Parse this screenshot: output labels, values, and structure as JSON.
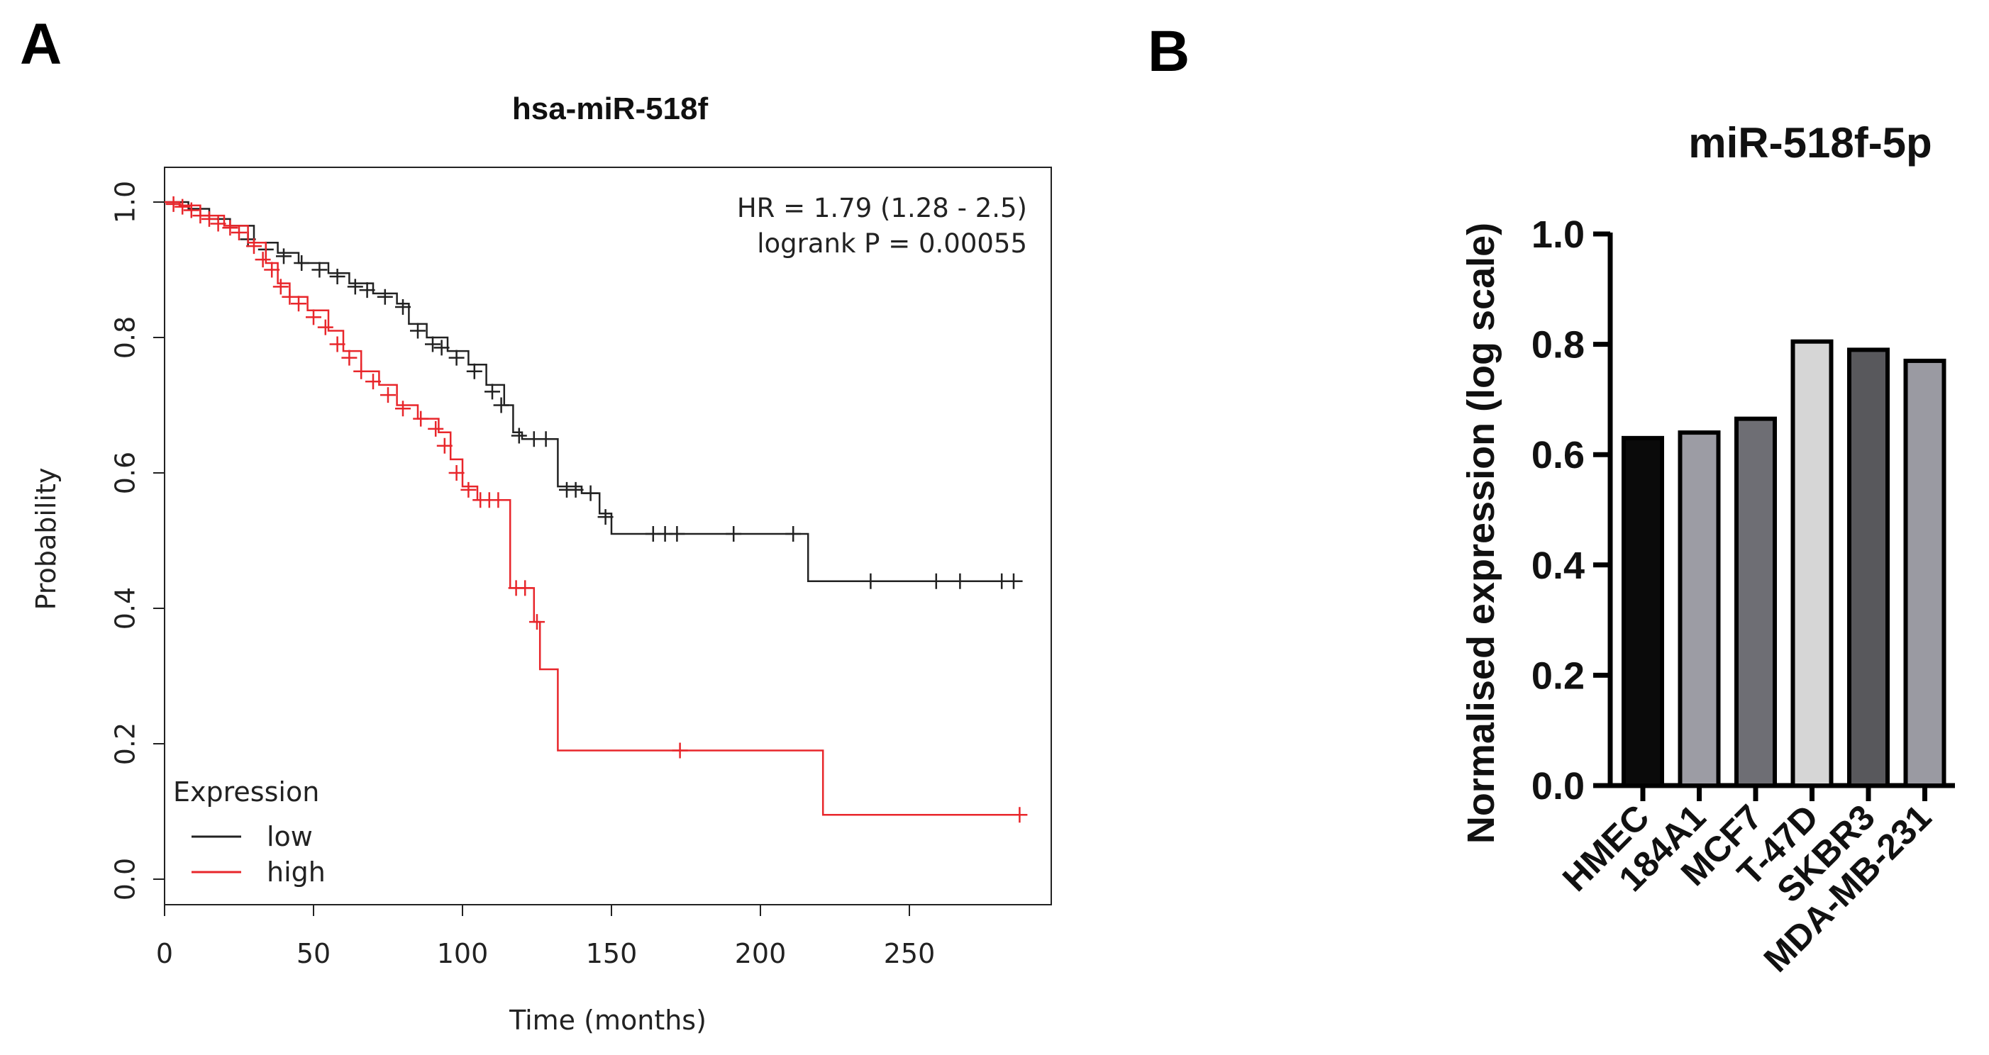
{
  "chart_data": [
    {
      "panel_label": "A",
      "type": "line",
      "subtype": "kaplan-meier",
      "title": "hsa-miR-518f",
      "xlabel": "Time (months)",
      "ylabel": "Probability",
      "xlim": [
        0,
        300
      ],
      "ylim": [
        0,
        1.0
      ],
      "xticks": [
        0,
        50,
        100,
        150,
        200,
        250
      ],
      "xtick_labels": [
        "0",
        "50",
        "100",
        "150",
        "200",
        "250"
      ],
      "yticks": [
        0.0,
        0.2,
        0.4,
        0.6,
        0.8,
        1.0
      ],
      "ytick_labels": [
        "0.0",
        "0.2",
        "0.4",
        "0.6",
        "0.8",
        "1.0"
      ],
      "annotation_hr": "HR = 1.79 (1.28 - 2.5)",
      "annotation_p": "logrank P = 0.00055",
      "legend": {
        "title": "Expression",
        "position": "bottom-left"
      },
      "series": [
        {
          "name": "low",
          "color": "#222222",
          "steps": [
            [
              0,
              1.0
            ],
            [
              8,
              0.99
            ],
            [
              15,
              0.975
            ],
            [
              22,
              0.965
            ],
            [
              30,
              0.94
            ],
            [
              38,
              0.925
            ],
            [
              45,
              0.91
            ],
            [
              55,
              0.895
            ],
            [
              62,
              0.88
            ],
            [
              70,
              0.865
            ],
            [
              78,
              0.85
            ],
            [
              82,
              0.82
            ],
            [
              88,
              0.8
            ],
            [
              95,
              0.78
            ],
            [
              102,
              0.76
            ],
            [
              108,
              0.73
            ],
            [
              114,
              0.7
            ],
            [
              117,
              0.66
            ],
            [
              120,
              0.65
            ],
            [
              130,
              0.65
            ],
            [
              132,
              0.58
            ],
            [
              140,
              0.57
            ],
            [
              146,
              0.54
            ],
            [
              150,
              0.51
            ],
            [
              215,
              0.51
            ],
            [
              216,
              0.44
            ],
            [
              288,
              0.44
            ]
          ],
          "censors": [
            [
              28,
              0.945
            ],
            [
              34,
              0.93
            ],
            [
              40,
              0.92
            ],
            [
              46,
              0.91
            ],
            [
              52,
              0.9
            ],
            [
              58,
              0.89
            ],
            [
              64,
              0.875
            ],
            [
              68,
              0.87
            ],
            [
              74,
              0.86
            ],
            [
              80,
              0.845
            ],
            [
              85,
              0.81
            ],
            [
              90,
              0.79
            ],
            [
              93,
              0.785
            ],
            [
              98,
              0.77
            ],
            [
              104,
              0.75
            ],
            [
              110,
              0.72
            ],
            [
              113,
              0.7
            ],
            [
              119,
              0.655
            ],
            [
              124,
              0.65
            ],
            [
              128,
              0.65
            ],
            [
              135,
              0.575
            ],
            [
              138,
              0.575
            ],
            [
              143,
              0.57
            ],
            [
              148,
              0.535
            ],
            [
              164,
              0.51
            ],
            [
              168,
              0.51
            ],
            [
              172,
              0.51
            ],
            [
              191,
              0.51
            ],
            [
              211,
              0.51
            ],
            [
              237,
              0.44
            ],
            [
              259,
              0.44
            ],
            [
              267,
              0.44
            ],
            [
              281,
              0.44
            ],
            [
              285,
              0.44
            ]
          ]
        },
        {
          "name": "high",
          "color": "#e8262b",
          "steps": [
            [
              0,
              1.0
            ],
            [
              5,
              0.995
            ],
            [
              12,
              0.98
            ],
            [
              20,
              0.965
            ],
            [
              28,
              0.94
            ],
            [
              34,
              0.91
            ],
            [
              38,
              0.88
            ],
            [
              42,
              0.86
            ],
            [
              48,
              0.84
            ],
            [
              55,
              0.81
            ],
            [
              60,
              0.78
            ],
            [
              66,
              0.75
            ],
            [
              72,
              0.73
            ],
            [
              78,
              0.7
            ],
            [
              85,
              0.68
            ],
            [
              92,
              0.66
            ],
            [
              96,
              0.62
            ],
            [
              100,
              0.58
            ],
            [
              105,
              0.56
            ],
            [
              114,
              0.56
            ],
            [
              116,
              0.43
            ],
            [
              122,
              0.43
            ],
            [
              124,
              0.38
            ],
            [
              126,
              0.31
            ],
            [
              130,
              0.31
            ],
            [
              132,
              0.19
            ],
            [
              220,
              0.19
            ],
            [
              221,
              0.095
            ],
            [
              288,
              0.095
            ]
          ],
          "censors": [
            [
              3,
              0.997
            ],
            [
              6,
              0.993
            ],
            [
              9,
              0.988
            ],
            [
              12,
              0.98
            ],
            [
              15,
              0.975
            ],
            [
              18,
              0.968
            ],
            [
              22,
              0.962
            ],
            [
              25,
              0.955
            ],
            [
              30,
              0.935
            ],
            [
              33,
              0.915
            ],
            [
              36,
              0.9
            ],
            [
              39,
              0.875
            ],
            [
              42,
              0.86
            ],
            [
              45,
              0.85
            ],
            [
              50,
              0.83
            ],
            [
              54,
              0.815
            ],
            [
              58,
              0.79
            ],
            [
              62,
              0.77
            ],
            [
              66,
              0.75
            ],
            [
              70,
              0.735
            ],
            [
              75,
              0.715
            ],
            [
              80,
              0.695
            ],
            [
              86,
              0.68
            ],
            [
              91,
              0.665
            ],
            [
              94,
              0.64
            ],
            [
              98,
              0.6
            ],
            [
              102,
              0.575
            ],
            [
              106,
              0.56
            ],
            [
              109,
              0.56
            ],
            [
              112,
              0.56
            ],
            [
              118,
              0.43
            ],
            [
              121,
              0.43
            ],
            [
              125,
              0.38
            ],
            [
              173,
              0.19
            ],
            [
              287,
              0.095
            ]
          ]
        }
      ]
    },
    {
      "panel_label": "B",
      "type": "bar",
      "title": "miR-518f-5p",
      "xlabel": "",
      "ylabel": "Normalised expression (log scale)",
      "ylim": [
        0,
        1.0
      ],
      "yticks": [
        0.0,
        0.2,
        0.4,
        0.6,
        0.8,
        1.0
      ],
      "ytick_labels": [
        "0.0",
        "0.2",
        "0.4",
        "0.6",
        "0.8",
        "1.0"
      ],
      "categories": [
        "HMEC",
        "184A1",
        "MCF7",
        "T-47D",
        "SKBR3",
        "MDA-MB-231"
      ],
      "values": [
        0.63,
        0.64,
        0.665,
        0.805,
        0.79,
        0.77
      ],
      "colors": [
        "#0a0a0a",
        "#9c9ca4",
        "#6e6e74",
        "#d6d6d6",
        "#58585c",
        "#9a9aa2"
      ]
    }
  ]
}
